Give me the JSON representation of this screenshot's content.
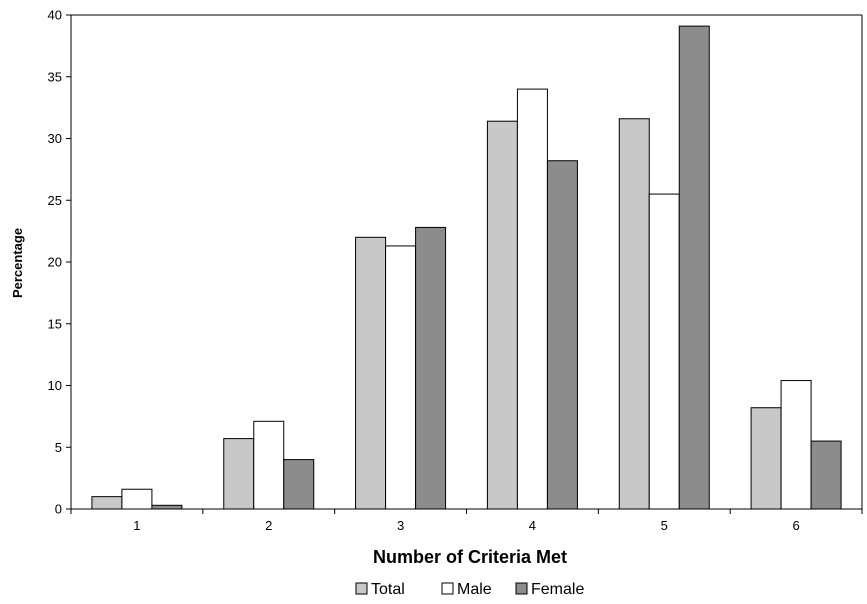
{
  "chart_data": {
    "type": "bar",
    "title": "",
    "xlabel": "Number of Criteria Met",
    "ylabel": "Percentage",
    "categories": [
      "1",
      "2",
      "3",
      "4",
      "5",
      "6"
    ],
    "series": [
      {
        "name": "Total",
        "color": "#c8c8c8",
        "values": [
          1.0,
          5.7,
          22.0,
          31.4,
          31.6,
          8.2
        ]
      },
      {
        "name": "Male",
        "color": "#ffffff",
        "values": [
          1.6,
          7.1,
          21.3,
          34.0,
          25.5,
          10.4
        ]
      },
      {
        "name": "Female",
        "color": "#8c8c8c",
        "values": [
          0.3,
          4.0,
          22.8,
          28.2,
          39.1,
          5.5
        ]
      }
    ],
    "ylim": [
      0,
      40
    ],
    "yticks": [
      "0",
      "5",
      "10",
      "15",
      "20",
      "25",
      "30",
      "35",
      "40"
    ],
    "grid": false,
    "legend_position": "bottom"
  }
}
